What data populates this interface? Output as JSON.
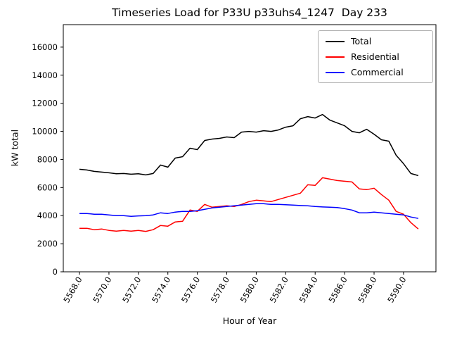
{
  "title": "Timeseries Load for P33U p33uhs4_1247  Day 233",
  "colors": {
    "background": "#ffffff",
    "frame": "#000000",
    "text": "#000000",
    "total": "#000000",
    "residential": "#ff0000",
    "commercial": "#0000ff"
  },
  "chart_data": {
    "type": "line",
    "title": "Timeseries Load for P33U p33uhs4_1247  Day 233",
    "xlabel": "Hour of Year",
    "ylabel": "kW total",
    "xlim": [
      5566.9,
      5592.2
    ],
    "ylim": [
      0,
      17600
    ],
    "grid": false,
    "legend_position": "upper right",
    "xticks": [
      5568,
      5570,
      5572,
      5574,
      5576,
      5578,
      5580,
      5582,
      5584,
      5586,
      5588,
      5590
    ],
    "xtick_labels": [
      "5568.0",
      "5570.0",
      "5572.0",
      "5574.0",
      "5576.0",
      "5578.0",
      "5580.0",
      "5582.0",
      "5584.0",
      "5586.0",
      "5588.0",
      "5590.0"
    ],
    "yticks": [
      0,
      2000,
      4000,
      6000,
      8000,
      10000,
      12000,
      14000,
      16000
    ],
    "ytick_labels": [
      "0",
      "2000",
      "4000",
      "6000",
      "8000",
      "10000",
      "12000",
      "14000",
      "16000"
    ],
    "x": [
      5568,
      5568.5,
      5569,
      5569.5,
      5570,
      5570.5,
      5571,
      5571.5,
      5572,
      5572.5,
      5573,
      5573.5,
      5574,
      5574.5,
      5575,
      5575.5,
      5576,
      5576.5,
      5577,
      5577.5,
      5578,
      5578.5,
      5579,
      5579.5,
      5580,
      5580.5,
      5581,
      5581.5,
      5582,
      5582.5,
      5583,
      5583.5,
      5584,
      5584.5,
      5585,
      5585.5,
      5586,
      5586.5,
      5587,
      5587.5,
      5588,
      5588.5,
      5589,
      5589.5,
      5590,
      5590.5,
      5591
    ],
    "series": [
      {
        "name": "Total",
        "color": "#000000",
        "values": [
          7300,
          7250,
          7150,
          7100,
          7050,
          6980,
          7000,
          6950,
          6980,
          6900,
          7000,
          7600,
          7450,
          8100,
          8200,
          8800,
          8700,
          9350,
          9450,
          9500,
          9600,
          9550,
          9950,
          10000,
          9950,
          10050,
          10000,
          10100,
          10300,
          10400,
          10900,
          11050,
          10950,
          11200,
          10800,
          10600,
          10400,
          10000,
          9900,
          10150,
          9800,
          9400,
          9300,
          8300,
          7700,
          7000,
          6850
        ]
      },
      {
        "name": "Residential",
        "color": "#ff0000",
        "values": [
          3100,
          3100,
          3000,
          3050,
          2950,
          2900,
          2950,
          2900,
          2950,
          2880,
          3000,
          3300,
          3250,
          3550,
          3600,
          4400,
          4300,
          4800,
          4600,
          4650,
          4700,
          4650,
          4800,
          5000,
          5100,
          5050,
          5000,
          5150,
          5300,
          5450,
          5600,
          6200,
          6150,
          6700,
          6600,
          6500,
          6450,
          6400,
          5900,
          5850,
          5950,
          5500,
          5100,
          4300,
          4100,
          3500,
          3050
        ]
      },
      {
        "name": "Commercial",
        "color": "#0000ff",
        "values": [
          4150,
          4150,
          4100,
          4100,
          4050,
          4000,
          4000,
          3950,
          3980,
          4000,
          4050,
          4200,
          4150,
          4250,
          4300,
          4300,
          4350,
          4450,
          4550,
          4600,
          4650,
          4700,
          4750,
          4800,
          4850,
          4850,
          4800,
          4800,
          4780,
          4750,
          4720,
          4700,
          4650,
          4620,
          4600,
          4580,
          4500,
          4400,
          4200,
          4200,
          4250,
          4200,
          4150,
          4100,
          4050,
          3900,
          3800
        ]
      }
    ]
  }
}
